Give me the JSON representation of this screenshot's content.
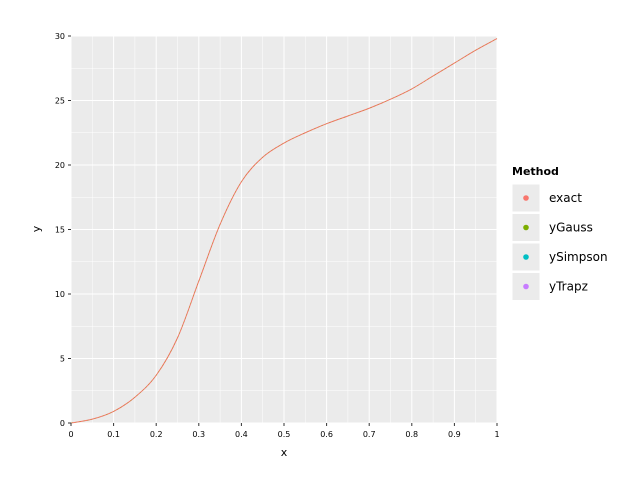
{
  "chart_data": {
    "type": "line",
    "xlabel": "x",
    "ylabel": "y",
    "xlim": [
      0,
      1
    ],
    "ylim": [
      0,
      30
    ],
    "x_ticks": [
      0,
      0.1,
      0.2,
      0.3,
      0.4,
      0.5,
      0.6,
      0.7,
      0.8,
      0.9,
      1
    ],
    "x_tick_labels": [
      "0",
      "0.1",
      "0.2",
      "0.3",
      "0.4",
      "0.5",
      "0.6",
      "0.7",
      "0.8",
      "0.9",
      "1"
    ],
    "y_ticks": [
      0,
      5,
      10,
      15,
      20,
      25,
      30
    ],
    "y_tick_labels": [
      "0",
      "5",
      "10",
      "15",
      "20",
      "25",
      "30"
    ],
    "grid": true,
    "background": "#EBEBEB",
    "grid_color": "#FFFFFF",
    "legend": {
      "title": "Method",
      "placement": "right",
      "entries": [
        {
          "label": "exact",
          "color": "#F8766D"
        },
        {
          "label": "yGauss",
          "color": "#7CAE00"
        },
        {
          "label": "ySimpson",
          "color": "#00BFC4"
        },
        {
          "label": "yTrapz",
          "color": "#C77CFF"
        }
      ]
    },
    "series": [
      {
        "name": "exact",
        "color": "#F8766D",
        "x": [
          0,
          0.05,
          0.1,
          0.15,
          0.2,
          0.25,
          0.3,
          0.35,
          0.4,
          0.45,
          0.5,
          0.55,
          0.6,
          0.65,
          0.7,
          0.75,
          0.8,
          0.85,
          0.9,
          0.95,
          1
        ],
        "y": [
          0,
          0.3,
          0.9,
          2.0,
          3.7,
          6.6,
          11.0,
          15.4,
          18.7,
          20.6,
          21.7,
          22.5,
          23.2,
          23.8,
          24.4,
          25.1,
          25.9,
          26.9,
          27.9,
          28.9,
          29.8
        ]
      }
    ]
  }
}
